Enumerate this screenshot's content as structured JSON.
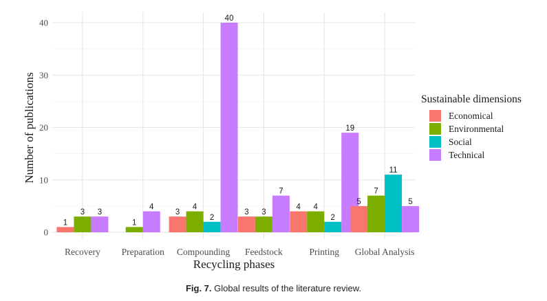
{
  "chart_data": {
    "type": "bar",
    "title": "",
    "xlabel": "Recycling phases",
    "ylabel": "Number of publications",
    "ylim": [
      0,
      40
    ],
    "yticks": [
      0,
      10,
      20,
      30,
      40
    ],
    "grid": true,
    "legend_position": "right",
    "legend_title": "Sustainable dimensions",
    "categories": [
      "Recovery",
      "Preparation",
      "Compounding",
      "Feedstock",
      "Printing",
      "Global Analysis"
    ],
    "series": [
      {
        "name": "Economical",
        "color": "#F8766D",
        "values": [
          1,
          null,
          3,
          3,
          4,
          5
        ]
      },
      {
        "name": "Environmental",
        "color": "#7CAE00",
        "values": [
          3,
          1,
          4,
          3,
          4,
          7
        ]
      },
      {
        "name": "Social",
        "color": "#00BFC4",
        "values": [
          null,
          null,
          2,
          null,
          2,
          11
        ]
      },
      {
        "name": "Technical",
        "color": "#C77CFF",
        "values": [
          3,
          4,
          40,
          7,
          19,
          5
        ]
      }
    ]
  },
  "caption": {
    "label": "Fig. 7.",
    "text": "Global results of the literature review."
  }
}
